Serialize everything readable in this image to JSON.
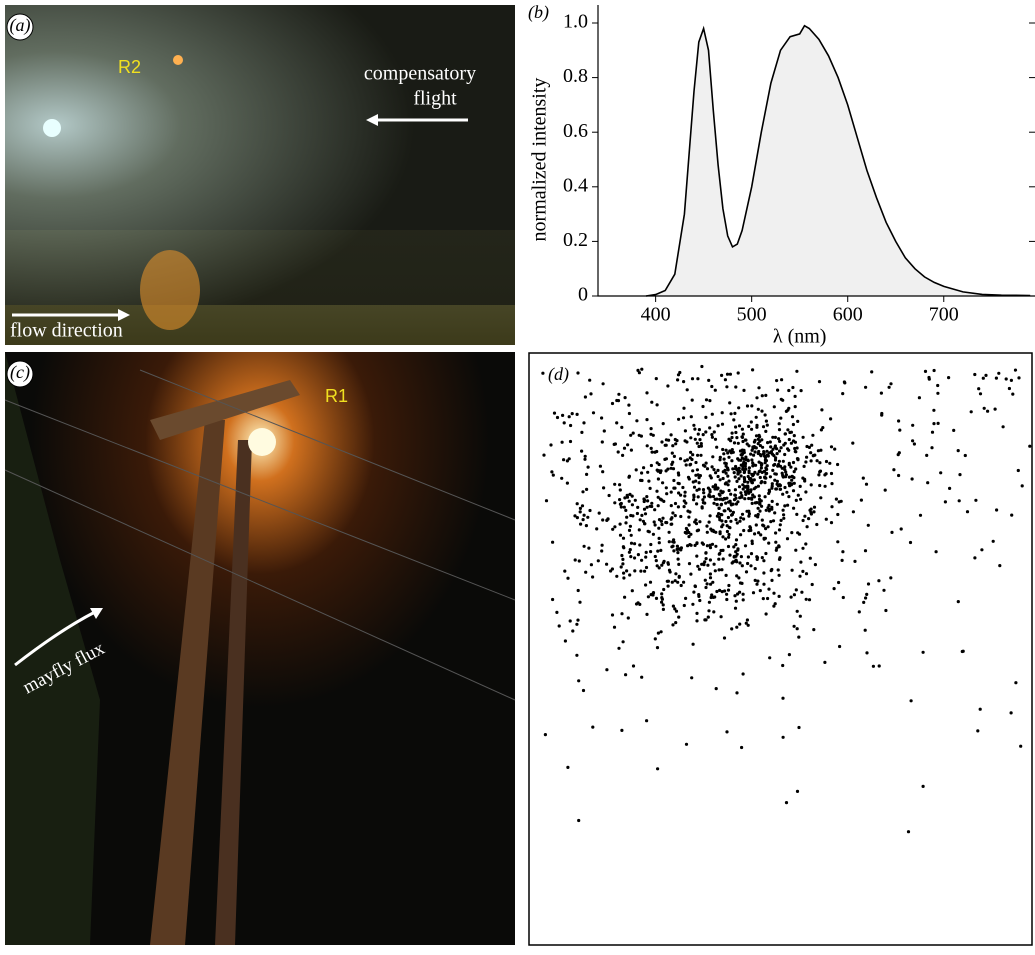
{
  "panels": {
    "a": {
      "label": "(a)",
      "light": "R2",
      "flight": [
        "compensatory",
        "flight"
      ],
      "flow": "flow direction"
    },
    "b": {
      "label": "(b)"
    },
    "c": {
      "label": "(c)",
      "light": "R1",
      "flux": "mayfly flux"
    },
    "d": {
      "label": "(d)"
    }
  },
  "chart_data": {
    "type": "line",
    "xlabel": "λ (nm)",
    "ylabel": "normalized intensity",
    "x": [
      390,
      400,
      410,
      420,
      430,
      440,
      445,
      450,
      455,
      460,
      465,
      470,
      475,
      480,
      485,
      490,
      500,
      510,
      520,
      530,
      540,
      550,
      555,
      560,
      570,
      580,
      590,
      600,
      610,
      620,
      630,
      640,
      650,
      660,
      670,
      680,
      690,
      700,
      720,
      740,
      760,
      790
    ],
    "values": [
      0,
      0.005,
      0.02,
      0.08,
      0.3,
      0.75,
      0.93,
      0.98,
      0.9,
      0.68,
      0.48,
      0.32,
      0.22,
      0.18,
      0.19,
      0.24,
      0.4,
      0.6,
      0.78,
      0.9,
      0.95,
      0.96,
      0.99,
      0.98,
      0.94,
      0.88,
      0.8,
      0.7,
      0.58,
      0.46,
      0.36,
      0.27,
      0.2,
      0.14,
      0.1,
      0.07,
      0.05,
      0.035,
      0.015,
      0.006,
      0.003,
      0.002
    ],
    "color": "#000000",
    "fill": "#f0f0f0",
    "xlim": [
      340,
      795
    ],
    "ylim": [
      0,
      1
    ],
    "xticks": [
      400,
      500,
      600,
      700
    ],
    "yticks": [
      0,
      0.2,
      0.4,
      0.6,
      0.8,
      {
        "value": 1,
        "label": "1.0"
      }
    ],
    "grid": false
  }
}
